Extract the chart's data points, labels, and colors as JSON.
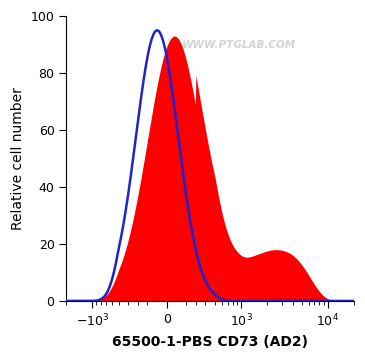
{
  "title": "",
  "xlabel": "65500-1-PBS CD73 (AD2)",
  "ylabel": "Relative cell number",
  "ylim": [
    0,
    100
  ],
  "yticks": [
    0,
    20,
    40,
    60,
    80,
    100
  ],
  "xtick_labels": [
    "-10$^3$",
    "0",
    "10$^3$",
    "10$^4$"
  ],
  "xtick_values": [
    -1000,
    0,
    1000,
    10000
  ],
  "watermark": "WWW.PTGLAB.COM",
  "blue_line_color": "#2222cc",
  "red_fill_color": "#ff0000",
  "background_color": "#ffffff",
  "fontsize_xlabel": 10,
  "fontsize_ylabel": 10,
  "fontsize_ticks": 9,
  "linthresh": 500,
  "linscale": 0.5
}
